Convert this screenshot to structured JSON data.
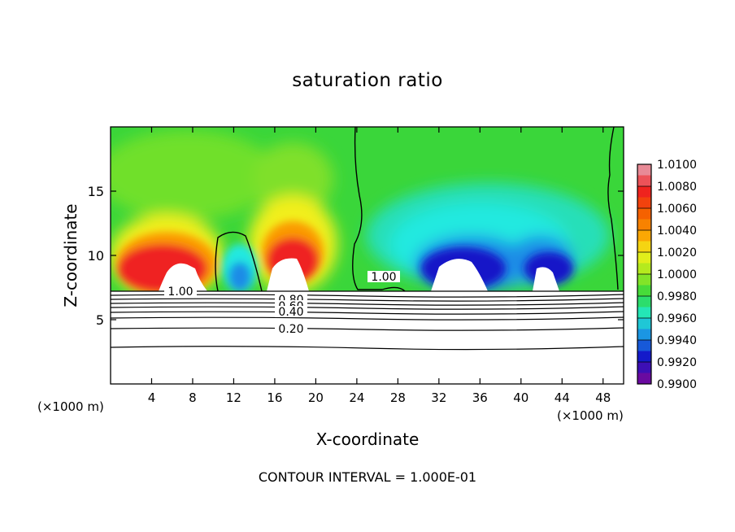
{
  "chart_data": {
    "type": "heatmap",
    "title": "saturation ratio",
    "xlabel": "X-coordinate",
    "ylabel": "Z-coordinate",
    "x_unit_label": "(×1000 m)",
    "xlim": [
      0,
      50
    ],
    "ylim": [
      0,
      20
    ],
    "x_ticks": [
      4,
      8,
      12,
      16,
      20,
      24,
      28,
      32,
      36,
      40,
      44,
      48
    ],
    "y_ticks": [
      5,
      10,
      15
    ],
    "colorbar": {
      "levels": [
        "1.0100",
        "1.0080",
        "1.0060",
        "1.0040",
        "1.0020",
        "1.0000",
        "0.9980",
        "0.9960",
        "0.9940",
        "0.9920",
        "0.9900"
      ],
      "colors": [
        "#e88a96",
        "#ef2020",
        "#f45a00",
        "#fb9a00",
        "#f2ef1a",
        "#9fe81f",
        "#30d740",
        "#22e9cc",
        "#1a8ce6",
        "#1414c8",
        "#6a0aa0"
      ]
    },
    "contour_labels": [
      "1.00",
      "1.00",
      "0.80",
      "0.60",
      "0.40",
      "0.20"
    ],
    "footer": "CONTOUR INTERVAL = 1.000E-01"
  }
}
